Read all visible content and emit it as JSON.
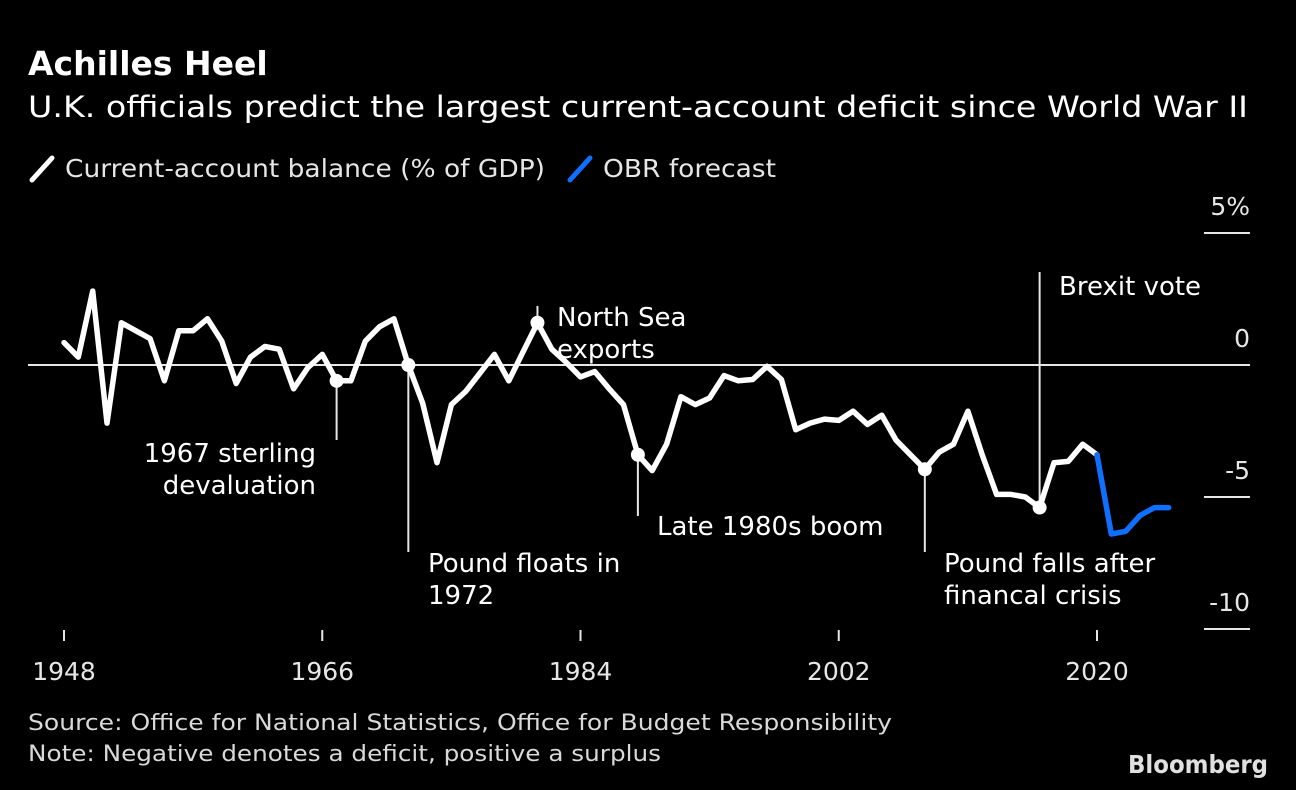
{
  "chart_data": {
    "type": "line",
    "title": "Achilles Heel",
    "subtitle": "U.K. officials predict the largest current-account deficit since World War II",
    "xlabel": "",
    "ylabel": "",
    "xlim": [
      1948,
      2025
    ],
    "ylim": [
      -10,
      5
    ],
    "x_ticks": [
      "1948",
      "1966",
      "1984",
      "2002",
      "2020"
    ],
    "x_tick_values": [
      1948,
      1966,
      1984,
      2002,
      2020
    ],
    "y_ticks": [
      "5%",
      "0",
      "-5",
      "-10"
    ],
    "y_tick_values": [
      5,
      0,
      -5,
      -10
    ],
    "legend_position": "top-left",
    "series": [
      {
        "name": "Current-account balance (% of GDP)",
        "color": "#ffffff",
        "x": [
          1948,
          1949,
          1950,
          1951,
          1952,
          1953,
          1954,
          1955,
          1956,
          1957,
          1958,
          1959,
          1960,
          1961,
          1962,
          1963,
          1964,
          1965,
          1966,
          1967,
          1968,
          1969,
          1970,
          1971,
          1972,
          1973,
          1974,
          1975,
          1976,
          1977,
          1978,
          1979,
          1980,
          1981,
          1982,
          1983,
          1984,
          1985,
          1986,
          1987,
          1988,
          1989,
          1990,
          1991,
          1992,
          1993,
          1994,
          1995,
          1996,
          1997,
          1998,
          1999,
          2000,
          2001,
          2002,
          2003,
          2004,
          2005,
          2006,
          2007,
          2008,
          2009,
          2010,
          2011,
          2012,
          2013,
          2014,
          2015,
          2016,
          2017,
          2018,
          2019,
          2020
        ],
        "values": [
          0.85,
          0.3,
          2.8,
          -2.2,
          1.6,
          1.3,
          1.0,
          -0.6,
          1.3,
          1.3,
          1.75,
          0.9,
          -0.7,
          0.3,
          0.7,
          0.6,
          -0.9,
          -0.1,
          0.4,
          -0.6,
          -0.6,
          0.9,
          1.45,
          1.75,
          0.0,
          -1.45,
          -3.7,
          -1.5,
          -1.0,
          -0.3,
          0.4,
          -0.6,
          0.5,
          1.6,
          0.6,
          0.1,
          -0.45,
          -0.25,
          -0.9,
          -1.5,
          -3.4,
          -4.0,
          -3.0,
          -1.2,
          -1.5,
          -1.25,
          -0.4,
          -0.6,
          -0.55,
          -0.05,
          -0.55,
          -2.45,
          -2.2,
          -2.05,
          -2.1,
          -1.75,
          -2.25,
          -1.9,
          -2.85,
          -3.4,
          -3.95,
          -3.3,
          -3.0,
          -1.75,
          -3.4,
          -4.9,
          -4.9,
          -5.0,
          -5.4,
          -3.7,
          -3.65,
          -3.0,
          -3.4
        ]
      },
      {
        "name": "OBR forecast",
        "color": "#0f6fff",
        "x": [
          2020,
          2021,
          2022,
          2023,
          2024,
          2025
        ],
        "values": [
          -3.4,
          -6.4,
          -6.3,
          -5.7,
          -5.4,
          -5.4
        ]
      }
    ],
    "annotations": [
      {
        "year": 1967,
        "value": -0.6,
        "lines": [
          "1967 sterling",
          "devaluation"
        ]
      },
      {
        "year": 1972,
        "value": 0.0,
        "lines": [
          "Pound floats in",
          "1972"
        ]
      },
      {
        "year": 1981,
        "value": 1.6,
        "lines": [
          "North Sea",
          "exports"
        ]
      },
      {
        "year": 1988,
        "value": -3.4,
        "lines": [
          "Late 1980s boom"
        ]
      },
      {
        "year": 2008,
        "value": -3.95,
        "lines": [
          "Pound falls after",
          "financal crisis"
        ]
      },
      {
        "year": 2016,
        "value": -5.4,
        "lines": [
          "Brexit vote"
        ]
      }
    ],
    "source": "Source: Office for National Statistics, Office for Budget Responsibility",
    "note": "Note: Negative denotes a deficit, positive a surplus",
    "brand": "Bloomberg"
  }
}
